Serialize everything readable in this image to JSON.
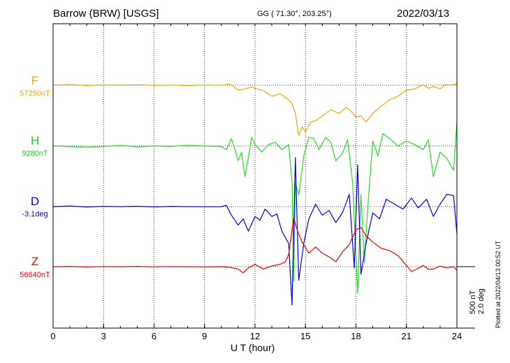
{
  "header": {
    "station": "Barrow (BRW)  [USGS]",
    "coords": "GG ( 71.30°, 203.25°)",
    "date": "2022/03/13"
  },
  "plot_note": "Plotted at 2022/04/13 00:52 UT",
  "scale": {
    "nt": "500 nT",
    "deg": "2.0 deg"
  },
  "chart_data": {
    "type": "line",
    "xlabel": "U T (hour)",
    "xlim": [
      0,
      24
    ],
    "xticks": [
      0,
      3,
      6,
      9,
      12,
      15,
      18,
      21,
      24
    ],
    "grid": true,
    "colors": {
      "F": "#f0a800",
      "H": "#22dd22",
      "D": "#0000dd",
      "Z": "#ee0000"
    },
    "series": [
      {
        "name": "F",
        "baseline_label": "57250nT",
        "points": [
          [
            0,
            0
          ],
          [
            1,
            5
          ],
          [
            2,
            -3
          ],
          [
            3,
            2
          ],
          [
            4,
            0
          ],
          [
            5,
            4
          ],
          [
            6,
            -2
          ],
          [
            7,
            1
          ],
          [
            8,
            -4
          ],
          [
            9,
            2
          ],
          [
            10,
            -1
          ],
          [
            10.5,
            10
          ],
          [
            11,
            -40
          ],
          [
            11.4,
            -30
          ],
          [
            11.8,
            -15
          ],
          [
            12,
            -25
          ],
          [
            12.5,
            -45
          ],
          [
            13,
            -90
          ],
          [
            13.5,
            -70
          ],
          [
            14,
            -120
          ],
          [
            14.2,
            -150
          ],
          [
            14.4,
            -230
          ],
          [
            14.6,
            -410
          ],
          [
            14.8,
            -340
          ],
          [
            15,
            -380
          ],
          [
            15.3,
            -300
          ],
          [
            15.6,
            -290
          ],
          [
            16,
            -250
          ],
          [
            16.5,
            -200
          ],
          [
            17,
            -230
          ],
          [
            17.4,
            -180
          ],
          [
            17.7,
            -210
          ],
          [
            18,
            -260
          ],
          [
            18.3,
            -250
          ],
          [
            18.6,
            -300
          ],
          [
            19,
            -230
          ],
          [
            19.5,
            -170
          ],
          [
            20,
            -120
          ],
          [
            20.5,
            -90
          ],
          [
            21,
            -40
          ],
          [
            21.5,
            -30
          ],
          [
            22,
            5
          ],
          [
            22.3,
            -25
          ],
          [
            22.6,
            -10
          ],
          [
            23,
            -30
          ],
          [
            23.3,
            5
          ],
          [
            23.6,
            0
          ],
          [
            24,
            10
          ]
        ]
      },
      {
        "name": "H",
        "baseline_label": "9280nT",
        "points": [
          [
            0,
            0
          ],
          [
            1,
            -5
          ],
          [
            2,
            -10
          ],
          [
            3,
            -5
          ],
          [
            4,
            5
          ],
          [
            5,
            -8
          ],
          [
            6,
            0
          ],
          [
            7,
            -5
          ],
          [
            8,
            5
          ],
          [
            9,
            0
          ],
          [
            10,
            -5
          ],
          [
            10.3,
            -30
          ],
          [
            10.6,
            60
          ],
          [
            11,
            -120
          ],
          [
            11.2,
            -50
          ],
          [
            11.4,
            -250
          ],
          [
            11.6,
            -100
          ],
          [
            11.8,
            70
          ],
          [
            12,
            10
          ],
          [
            12.4,
            -50
          ],
          [
            12.8,
            10
          ],
          [
            13.2,
            30
          ],
          [
            13.6,
            -30
          ],
          [
            14,
            10
          ],
          [
            14.2,
            -300
          ],
          [
            14.3,
            -1100
          ],
          [
            14.4,
            -300
          ],
          [
            14.6,
            -400
          ],
          [
            14.9,
            -80
          ],
          [
            15.2,
            70
          ],
          [
            15.5,
            60
          ],
          [
            15.8,
            -30
          ],
          [
            16.2,
            70
          ],
          [
            16.5,
            30
          ],
          [
            16.8,
            -120
          ],
          [
            17.2,
            -60
          ],
          [
            17.5,
            50
          ],
          [
            17.8,
            -300
          ],
          [
            18,
            -900
          ],
          [
            18.1,
            -1200
          ],
          [
            18.3,
            -400
          ],
          [
            18.5,
            -950
          ],
          [
            18.7,
            -500
          ],
          [
            19,
            40
          ],
          [
            19.3,
            -80
          ],
          [
            19.6,
            100
          ],
          [
            20,
            60
          ],
          [
            20.5,
            0
          ],
          [
            21,
            40
          ],
          [
            21.5,
            10
          ],
          [
            22,
            -30
          ],
          [
            22.3,
            50
          ],
          [
            22.6,
            -250
          ],
          [
            23,
            -50
          ],
          [
            23.4,
            -100
          ],
          [
            23.8,
            -200
          ],
          [
            24,
            190
          ]
        ]
      },
      {
        "name": "D",
        "baseline_label": "-3.1deg",
        "points": [
          [
            0,
            0
          ],
          [
            1,
            5
          ],
          [
            2,
            -3
          ],
          [
            3,
            2
          ],
          [
            4,
            0
          ],
          [
            5,
            3
          ],
          [
            6,
            -2
          ],
          [
            7,
            2
          ],
          [
            8,
            0
          ],
          [
            9,
            -1
          ],
          [
            10,
            0
          ],
          [
            10.3,
            10
          ],
          [
            10.6,
            -70
          ],
          [
            11,
            -150
          ],
          [
            11.3,
            -100
          ],
          [
            11.6,
            -200
          ],
          [
            12,
            -80
          ],
          [
            12.3,
            -110
          ],
          [
            12.6,
            -20
          ],
          [
            13,
            -80
          ],
          [
            13.3,
            -60
          ],
          [
            13.6,
            -200
          ],
          [
            14,
            -300
          ],
          [
            14.2,
            -800
          ],
          [
            14.4,
            400
          ],
          [
            14.6,
            -600
          ],
          [
            14.9,
            -300
          ],
          [
            15.2,
            -100
          ],
          [
            15.6,
            20
          ],
          [
            16,
            -70
          ],
          [
            16.4,
            -30
          ],
          [
            16.8,
            -130
          ],
          [
            17.2,
            -50
          ],
          [
            17.6,
            100
          ],
          [
            17.9,
            -500
          ],
          [
            18.1,
            340
          ],
          [
            18.3,
            -550
          ],
          [
            18.6,
            -300
          ],
          [
            19,
            -50
          ],
          [
            19.4,
            -100
          ],
          [
            19.8,
            60
          ],
          [
            20.3,
            20
          ],
          [
            20.8,
            -20
          ],
          [
            21.3,
            70
          ],
          [
            21.7,
            -10
          ],
          [
            22.2,
            60
          ],
          [
            22.6,
            -80
          ],
          [
            23,
            20
          ],
          [
            23.4,
            100
          ],
          [
            23.8,
            90
          ],
          [
            24,
            -220
          ]
        ]
      },
      {
        "name": "Z",
        "baseline_label": "56640nT",
        "points": [
          [
            0,
            0
          ],
          [
            1,
            2
          ],
          [
            2,
            -2
          ],
          [
            3,
            1
          ],
          [
            4,
            0
          ],
          [
            5,
            2
          ],
          [
            6,
            -1
          ],
          [
            7,
            1
          ],
          [
            8,
            0
          ],
          [
            9,
            -1
          ],
          [
            10,
            0
          ],
          [
            10.5,
            -5
          ],
          [
            11,
            -20
          ],
          [
            11.3,
            -50
          ],
          [
            11.6,
            -10
          ],
          [
            12,
            20
          ],
          [
            12.5,
            -20
          ],
          [
            13,
            5
          ],
          [
            13.5,
            20
          ],
          [
            13.8,
            40
          ],
          [
            14,
            100
          ],
          [
            14.3,
            400
          ],
          [
            14.5,
            300
          ],
          [
            14.8,
            200
          ],
          [
            15.2,
            110
          ],
          [
            15.6,
            160
          ],
          [
            16,
            110
          ],
          [
            16.4,
            80
          ],
          [
            16.8,
            40
          ],
          [
            17.2,
            120
          ],
          [
            17.6,
            180
          ],
          [
            18,
            300
          ],
          [
            18.3,
            320
          ],
          [
            18.6,
            250
          ],
          [
            19,
            200
          ],
          [
            19.5,
            150
          ],
          [
            20,
            130
          ],
          [
            20.5,
            90
          ],
          [
            21,
            10
          ],
          [
            21.3,
            -40
          ],
          [
            21.6,
            -20
          ],
          [
            22,
            10
          ],
          [
            22.3,
            -20
          ],
          [
            22.6,
            -20
          ],
          [
            23,
            5
          ],
          [
            23.4,
            -10
          ],
          [
            23.8,
            0
          ],
          [
            24,
            -30
          ]
        ]
      }
    ]
  }
}
